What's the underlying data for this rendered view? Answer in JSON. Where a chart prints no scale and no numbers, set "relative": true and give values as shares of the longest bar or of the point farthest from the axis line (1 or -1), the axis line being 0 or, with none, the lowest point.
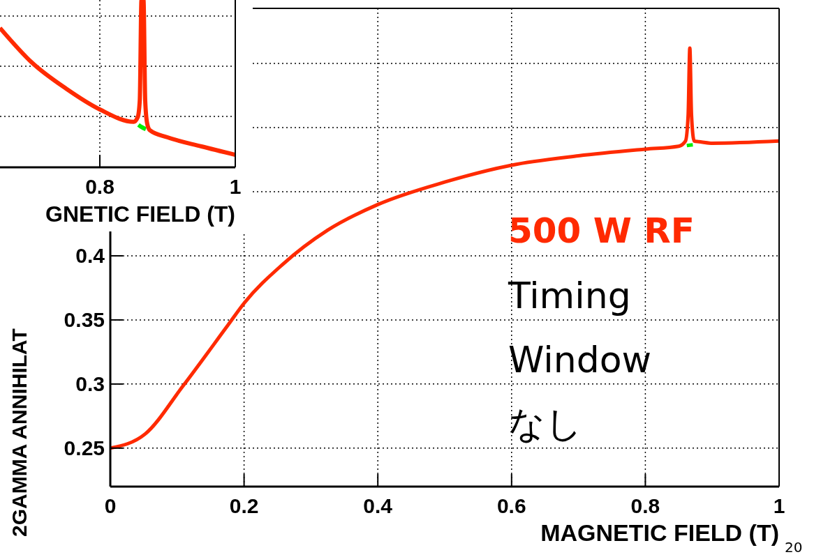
{
  "chart_data": [
    {
      "type": "line",
      "xlabel": "GNETIC FIELD (T)",
      "relative": true,
      "xlim": [
        0.6526,
        1
      ],
      "xticks": [
        0.8,
        1
      ],
      "grid": true,
      "tick_labels": "x",
      "series": [
        {
          "color": "#00ee00",
          "x": [
            0.857,
            0.862,
            0.868
          ],
          "values": [
            0.254,
            0.24,
            0.228
          ]
        },
        {
          "color": "#ff2a00",
          "x": [
            0.6526,
            0.7,
            0.75,
            0.8,
            0.85,
            0.856,
            0.859,
            0.8615,
            0.8645,
            0.867,
            0.87,
            0.874,
            0.9,
            0.95,
            1
          ],
          "values": [
            0.833,
            0.625,
            0.471,
            0.346,
            0.272,
            0.3,
            0.4,
            1,
            1,
            0.4,
            0.26,
            0.221,
            0.179,
            0.125,
            0.075
          ]
        }
      ]
    },
    {
      "type": "line",
      "xlabel": "MAGNETIC FIELD (T)",
      "ylabel": "2GAMMA ANNIHILAT",
      "xlim": [
        0,
        1
      ],
      "ylim": [
        0.22,
        0.593
      ],
      "xticks": [
        0,
        0.2,
        0.4,
        0.6,
        0.8,
        1
      ],
      "yticks": [
        0.25,
        0.3,
        0.35,
        0.4,
        {
          "value": 0.45,
          "label": null
        },
        {
          "value": 0.5,
          "label": null
        },
        {
          "value": 0.55,
          "label": null
        }
      ],
      "grid": true,
      "annotations": [
        "500 W RF",
        "Timing Window なし",
        "20"
      ],
      "series": [
        {
          "color": "#00ee00",
          "x": [
            0.862,
            0.866,
            0.871
          ],
          "values": [
            0.486,
            0.4863,
            0.4866
          ]
        },
        {
          "color": "#ff2a00",
          "x": [
            0,
            0.052,
            0.108,
            0.176,
            0.2,
            0.257,
            0.325,
            0.4,
            0.5,
            0.6,
            0.7,
            0.8,
            0.85,
            0.86,
            0.864,
            0.8665,
            0.869,
            0.873,
            0.88,
            0.9,
            1
          ],
          "values": [
            0.25,
            0.261,
            0.298,
            0.346,
            0.363,
            0.393,
            0.42,
            0.44,
            0.4575,
            0.4707,
            0.478,
            0.4832,
            0.4855,
            0.4895,
            0.51,
            0.562,
            0.51,
            0.4895,
            0.489,
            0.4878,
            0.4895
          ]
        }
      ]
    }
  ]
}
